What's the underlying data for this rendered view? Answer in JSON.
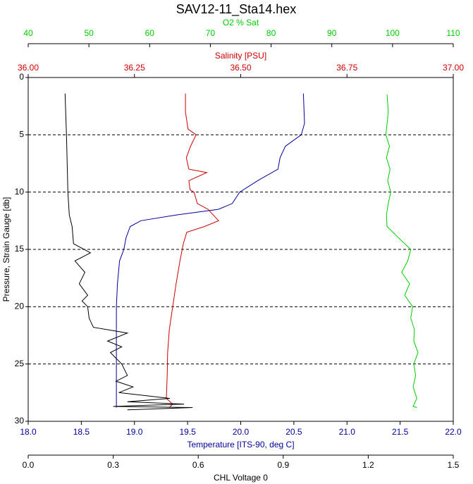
{
  "chart_data": {
    "type": "line",
    "title": "SAV12-11_Sta14.hex",
    "ylabel": "Pressure, Strain Gauge [db]",
    "ylim": [
      0,
      30
    ],
    "yticks": [
      0,
      5,
      10,
      15,
      20,
      25,
      30
    ],
    "grid": true,
    "x_axes": [
      {
        "label": "O2 % Sat",
        "color": "#00cc00",
        "lim": [
          40,
          110
        ],
        "ticks": [
          40,
          50,
          60,
          70,
          80,
          90,
          100,
          110
        ]
      },
      {
        "label": "Salinity [PSU]",
        "color": "#cc0000",
        "lim": [
          36,
          37
        ],
        "ticks": [
          {
            "value": 36,
            "label": "36.00"
          },
          36.25,
          {
            "value": 36.5,
            "label": "36.50"
          },
          36.75,
          {
            "value": 37,
            "label": "37.00"
          }
        ]
      },
      {
        "label": "Temperature [ITS-90, deg C]",
        "color": "#000099",
        "lim": [
          18,
          22
        ],
        "ticks": [
          {
            "value": 18,
            "label": "18.0"
          },
          18.5,
          {
            "value": 19,
            "label": "19.0"
          },
          19.5,
          {
            "value": 20,
            "label": "20.0"
          },
          20.5,
          {
            "value": 21,
            "label": "21.0"
          },
          21.5,
          {
            "value": 22,
            "label": "22.0"
          }
        ]
      },
      {
        "label": "CHL Voltage 0",
        "color": "#000000",
        "lim": [
          0,
          1.5
        ],
        "ticks": [
          {
            "value": 0,
            "label": "0.0"
          },
          0.3,
          0.6,
          0.9,
          1.2,
          1.5
        ]
      }
    ],
    "series": [
      {
        "color": "#000099",
        "axis": 2,
        "x": [
          20.59,
          20.6,
          20.57,
          20.42,
          20.37,
          20.35,
          20.16,
          19.99,
          19.92,
          19.79,
          19.39,
          19.06,
          18.96,
          18.92,
          18.9,
          18.86,
          18.84,
          18.83,
          18.83,
          18.83,
          18.83
        ],
        "y": [
          1.4,
          4,
          5,
          6,
          7,
          8,
          9,
          10,
          11,
          11.5,
          12,
          12.5,
          13,
          14,
          15,
          16,
          18,
          20,
          25,
          28,
          28.8
        ]
      },
      {
        "color": "#cc0000",
        "axis": 1,
        "x": [
          36.37,
          36.37,
          36.376,
          36.395,
          36.382,
          36.372,
          36.378,
          36.42,
          36.378,
          36.381,
          36.39,
          36.398,
          36.423,
          36.448,
          36.415,
          36.373,
          36.365,
          36.357,
          36.348,
          36.34,
          36.332,
          36.328,
          36.327,
          36.325,
          36.34,
          36.332
        ],
        "y": [
          1.4,
          3,
          4.5,
          5,
          6,
          7,
          8,
          8.3,
          9,
          9.8,
          10,
          11,
          11.5,
          12.5,
          13,
          13.5,
          14.5,
          16,
          18,
          20,
          22,
          24,
          26,
          28,
          28.5,
          28.8
        ]
      },
      {
        "color": "#00cc00",
        "axis": 0,
        "x": [
          99.1,
          99.3,
          98.9,
          99.5,
          99.0,
          99.6,
          99.2,
          99.7,
          99.3,
          99.0,
          99.1,
          101.0,
          103.0,
          102.5,
          101.5,
          102.8,
          102.0,
          103.3,
          103.0,
          103.6,
          103.5,
          104.2,
          103.5,
          103.8,
          103.4,
          104.0,
          103.4,
          104.0
        ],
        "y": [
          1.5,
          3,
          5,
          6,
          7,
          8,
          9,
          10,
          11,
          12,
          13,
          14,
          15,
          16,
          17,
          18,
          19,
          20,
          21,
          22,
          23,
          24,
          25,
          26,
          27,
          28,
          28.7,
          28.8
        ]
      },
      {
        "color": "#000000",
        "axis": 3,
        "x": [
          0.13,
          0.135,
          0.14,
          0.145,
          0.155,
          0.16,
          0.22,
          0.165,
          0.2,
          0.18,
          0.21,
          0.19,
          0.21,
          0.215,
          0.23,
          0.35,
          0.28,
          0.33,
          0.29,
          0.33,
          0.35,
          0.31,
          0.37,
          0.32,
          0.5,
          0.35,
          0.55,
          0.3,
          0.58,
          0.35
        ],
        "y": [
          1.4,
          5,
          10,
          12,
          13,
          14.5,
          15.3,
          16,
          17,
          18,
          19,
          19.5,
          20,
          21,
          21.8,
          22.3,
          23,
          23.5,
          24,
          25,
          26,
          26.5,
          27,
          27.5,
          28,
          28.3,
          28.5,
          28.7,
          28.8,
          29
        ]
      }
    ]
  }
}
